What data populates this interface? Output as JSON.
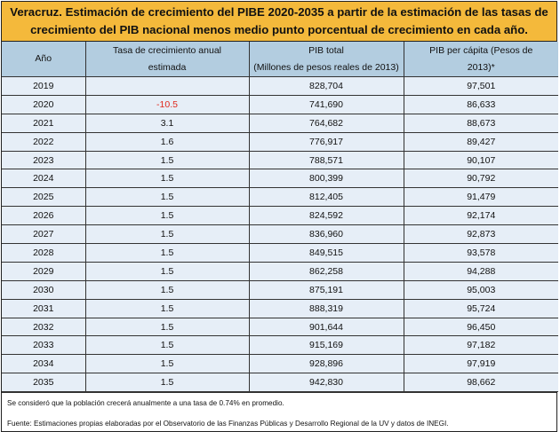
{
  "title_line1": "Veracruz. Estimación de crecimiento del PIBE 2020-2035 a partir de la estimación de las tasas de",
  "title_line2": "crecimiento del PIB nacional menos medio punto porcentual de crecimiento en cada año.",
  "headers": {
    "year": "Año",
    "rate_line1": "Tasa de crecimiento anual",
    "rate_line2": "estimada",
    "gdp_line1": "PIB total",
    "gdp_line2": "(Millones de pesos reales de 2013)",
    "pc_line1": "PIB per cápita (Pesos de",
    "pc_line2": "2013)*"
  },
  "rows": [
    {
      "year": "2019",
      "rate": "",
      "gdp": "828,704",
      "pc": "97,501"
    },
    {
      "year": "2020",
      "rate": "-10.5",
      "gdp": "741,690",
      "pc": "86,633"
    },
    {
      "year": "2021",
      "rate": "3.1",
      "gdp": "764,682",
      "pc": "88,673"
    },
    {
      "year": "2022",
      "rate": "1.6",
      "gdp": "776,917",
      "pc": "89,427"
    },
    {
      "year": "2023",
      "rate": "1.5",
      "gdp": "788,571",
      "pc": "90,107"
    },
    {
      "year": "2024",
      "rate": "1.5",
      "gdp": "800,399",
      "pc": "90,792"
    },
    {
      "year": "2025",
      "rate": "1.5",
      "gdp": "812,405",
      "pc": "91,479"
    },
    {
      "year": "2026",
      "rate": "1.5",
      "gdp": "824,592",
      "pc": "92,174"
    },
    {
      "year": "2027",
      "rate": "1.5",
      "gdp": "836,960",
      "pc": "92,873"
    },
    {
      "year": "2028",
      "rate": "1.5",
      "gdp": "849,515",
      "pc": "93,578"
    },
    {
      "year": "2029",
      "rate": "1.5",
      "gdp": "862,258",
      "pc": "94,288"
    },
    {
      "year": "2030",
      "rate": "1.5",
      "gdp": "875,191",
      "pc": "95,003"
    },
    {
      "year": "2031",
      "rate": "1.5",
      "gdp": "888,319",
      "pc": "95,724"
    },
    {
      "year": "2032",
      "rate": "1.5",
      "gdp": "901,644",
      "pc": "96,450"
    },
    {
      "year": "2033",
      "rate": "1.5",
      "gdp": "915,169",
      "pc": "97,182"
    },
    {
      "year": "2034",
      "rate": "1.5",
      "gdp": "928,896",
      "pc": "97,919"
    },
    {
      "year": "2035",
      "rate": "1.5",
      "gdp": "942,830",
      "pc": "98,662"
    }
  ],
  "note1": "Se consideró que la población crecerá anualmente a una tasa de 0.74% en promedio.",
  "note2": "Fuente: Estimaciones propias elaboradas por el Observatorio de las Finanzas Públicas y Desarrollo Regional de la UV y datos de INEGI.",
  "colors": {
    "title_bg": "#f4b93b",
    "header_bg": "#b3cde0",
    "row_bg": "#e6eef7",
    "negative": "#e0281c"
  }
}
